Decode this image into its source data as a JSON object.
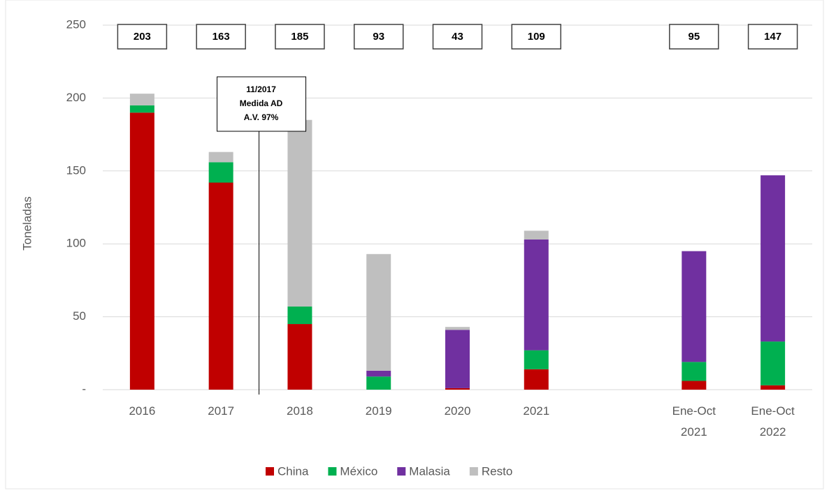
{
  "chart_data": {
    "type": "stacked_bar",
    "y_axis_label": "Toneladas",
    "categories": [
      "2016",
      "2017",
      "2018",
      "2019",
      "2020",
      "2021",
      null,
      "Ene-Oct 2021",
      "Ene-Oct 2022"
    ],
    "series": [
      {
        "name": "China",
        "color": "#c00000",
        "values": [
          190,
          142,
          45,
          0,
          1,
          14,
          null,
          6,
          3
        ]
      },
      {
        "name": "México",
        "color": "#00b050",
        "values": [
          5,
          14,
          12,
          9,
          0,
          13,
          null,
          13,
          30
        ]
      },
      {
        "name": "Malasia",
        "color": "#7030a0",
        "values": [
          0,
          0,
          0,
          4,
          40,
          76,
          null,
          76,
          114
        ]
      },
      {
        "name": "Resto",
        "color": "#bfbfbf",
        "values": [
          8,
          7,
          128,
          80,
          2,
          6,
          null,
          0,
          0
        ]
      }
    ],
    "totals": [
      203,
      163,
      185,
      93,
      43,
      109,
      null,
      95,
      147
    ],
    "ylim": [
      0,
      250
    ],
    "yticks": [
      {
        "value": 0,
        "label": "-"
      },
      50,
      100,
      150,
      200,
      250
    ],
    "grid": true,
    "legend": "bottom",
    "annotation": {
      "lines": [
        "11/2017",
        "Medida AD",
        "A.V. 97%"
      ]
    }
  }
}
